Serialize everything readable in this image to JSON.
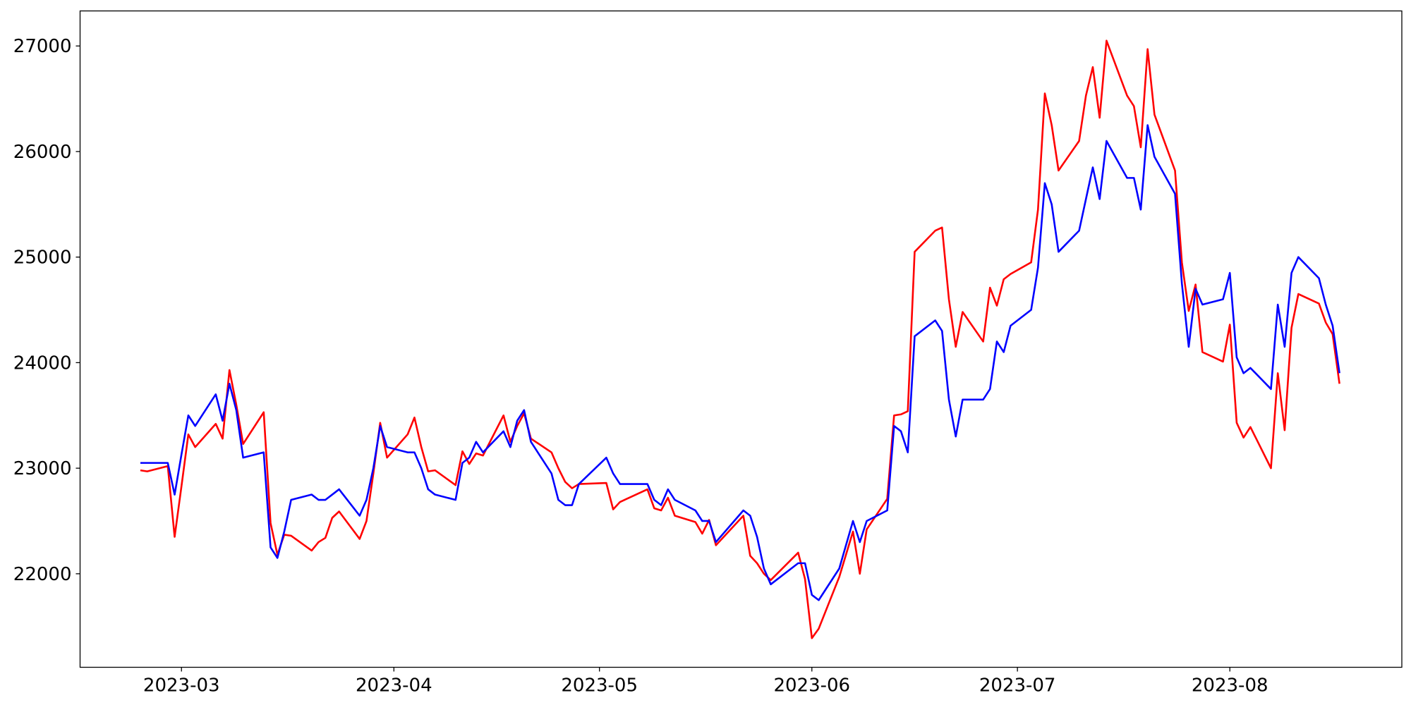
{
  "chart_data": {
    "type": "line",
    "x": [
      19411,
      19412,
      19415,
      19416,
      19417,
      19418,
      19419,
      19422,
      19423,
      19424,
      19425,
      19426,
      19429,
      19430,
      19431,
      19432,
      19433,
      19436,
      19437,
      19438,
      19439,
      19440,
      19443,
      19444,
      19445,
      19446,
      19447,
      19450,
      19451,
      19452,
      19453,
      19454,
      19457,
      19458,
      19459,
      19460,
      19461,
      19464,
      19465,
      19466,
      19467,
      19468,
      19471,
      19472,
      19473,
      19474,
      19475,
      19479,
      19480,
      19481,
      19485,
      19486,
      19487,
      19488,
      19489,
      19492,
      19493,
      19494,
      19495,
      19499,
      19500,
      19501,
      19502,
      19503,
      19507,
      19508,
      19509,
      19510,
      19513,
      19515,
      19516,
      19517,
      19520,
      19521,
      19522,
      19523,
      19524,
      19527,
      19528,
      19529,
      19530,
      19531,
      19534,
      19535,
      19536,
      19537,
      19538,
      19541,
      19542,
      19543,
      19544,
      19545,
      19548,
      19549,
      19550,
      19551,
      19552,
      19555,
      19556,
      19557,
      19558,
      19559,
      19562,
      19563,
      19564,
      19565,
      19566,
      19569,
      19570,
      19571,
      19572,
      19573,
      19576,
      19577,
      19578,
      19579,
      19580,
      19583,
      19584,
      19585,
      19586
    ],
    "series": [
      {
        "color": "#ff0000",
        "values": [
          22980,
          22970,
          23020,
          22350,
          22830,
          23320,
          23200,
          23420,
          23280,
          23930,
          23600,
          23230,
          23530,
          22480,
          22180,
          22370,
          22360,
          22220,
          22300,
          22340,
          22530,
          22590,
          22330,
          22500,
          22950,
          23430,
          23100,
          23320,
          23480,
          23200,
          22970,
          22980,
          22840,
          23160,
          23040,
          23140,
          23120,
          23500,
          23250,
          23400,
          23520,
          23280,
          23150,
          23000,
          22870,
          22810,
          22850,
          22860,
          22610,
          22680,
          22800,
          22620,
          22600,
          22720,
          22550,
          22490,
          22380,
          22510,
          22270,
          22550,
          22170,
          22100,
          22000,
          21940,
          22200,
          21950,
          21390,
          21480,
          21970,
          22400,
          22000,
          22420,
          22710,
          23500,
          23510,
          23540,
          25050,
          25250,
          25280,
          24600,
          24150,
          24480,
          24200,
          24710,
          24540,
          24790,
          24840,
          24950,
          25450,
          26550,
          26250,
          25820,
          26100,
          26530,
          26800,
          26320,
          27050,
          26530,
          26430,
          26040,
          26970,
          26350,
          25820,
          24950,
          24490,
          24740,
          24100,
          24010,
          24360,
          23430,
          23290,
          23390,
          23000,
          23900,
          23360,
          24330,
          24650,
          24560,
          24380,
          24270,
          23800
        ]
      },
      {
        "color": "#0000ff",
        "values": [
          23050,
          23050,
          23050,
          22750,
          23130,
          23500,
          23400,
          23700,
          23450,
          23800,
          23550,
          23100,
          23150,
          22250,
          22150,
          22400,
          22700,
          22750,
          22700,
          22700,
          22750,
          22800,
          22550,
          22700,
          23000,
          23400,
          23200,
          23150,
          23150,
          23000,
          22800,
          22750,
          22700,
          23050,
          23100,
          23250,
          23150,
          23350,
          23200,
          23450,
          23550,
          23250,
          22950,
          22700,
          22650,
          22650,
          22850,
          23100,
          22950,
          22850,
          22850,
          22700,
          22650,
          22800,
          22700,
          22600,
          22500,
          22500,
          22300,
          22600,
          22550,
          22350,
          22050,
          21900,
          22100,
          22100,
          21800,
          21750,
          22050,
          22500,
          22300,
          22500,
          22600,
          23400,
          23350,
          23150,
          24250,
          24400,
          24300,
          23650,
          23300,
          23650,
          23650,
          23750,
          24200,
          24100,
          24350,
          24500,
          24900,
          25700,
          25500,
          25050,
          25250,
          25550,
          25850,
          25550,
          26100,
          25750,
          25750,
          25450,
          26250,
          25950,
          25600,
          24750,
          24150,
          24700,
          24550,
          24600,
          24850,
          24050,
          23900,
          23950,
          23750,
          24550,
          24150,
          24850,
          25000,
          24800,
          24550,
          24350,
          23900
        ]
      }
    ],
    "xlim": [
      19402.2,
      19595.1
    ],
    "ylim": [
      21114,
      27332
    ],
    "xticks": [
      {
        "value": 19417,
        "label": "2023-03"
      },
      {
        "value": 19448,
        "label": "2023-04"
      },
      {
        "value": 19478,
        "label": "2023-05"
      },
      {
        "value": 19509,
        "label": "2023-06"
      },
      {
        "value": 19539,
        "label": "2023-07"
      },
      {
        "value": 19570,
        "label": "2023-08"
      }
    ],
    "yticks": [
      22000,
      23000,
      24000,
      25000,
      26000,
      27000
    ],
    "grid": false
  }
}
